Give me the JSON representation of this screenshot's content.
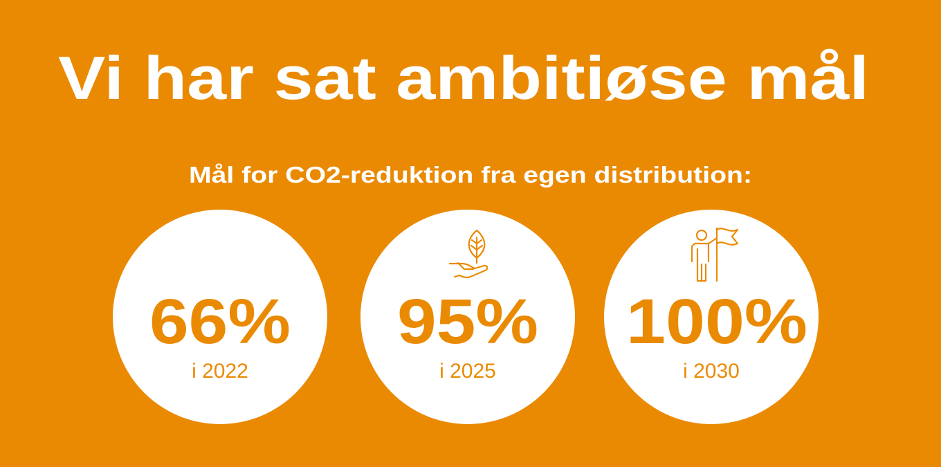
{
  "header": {
    "title": "Vi har sat ambitiøse mål",
    "subtitle": "Mål for CO2-reduktion fra egen distribution:"
  },
  "goals": [
    {
      "value": "66%",
      "year": "i 2022"
    },
    {
      "value": "95%",
      "year": "i 2025"
    },
    {
      "value": "100%",
      "year": "i 2030"
    }
  ]
}
